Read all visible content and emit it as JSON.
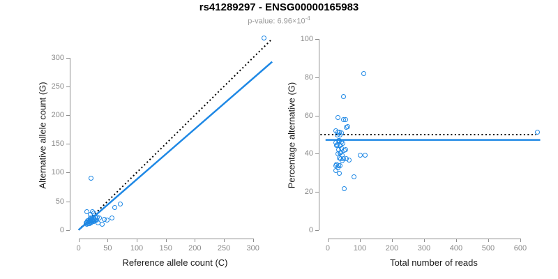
{
  "header": {
    "title": "rs41289297 - ENSG00000165983",
    "pvalue_label": "p-value: 6.96×10",
    "pvalue_exponent": "-4"
  },
  "colors": {
    "point_blue": "#1E88E5",
    "line_blue": "#1E88E5",
    "dotted_black": "#000000",
    "axis_gray": "#8E8E8E",
    "tick_label_gray": "#8A8A8A",
    "subtitle_gray": "#9A9A9A"
  },
  "chart_data": [
    {
      "type": "scatter",
      "panel": "left",
      "xlabel": "Reference allele count (C)",
      "ylabel": "Alternative allele count (G)",
      "xlim": [
        -14,
        346
      ],
      "ylim": [
        -15,
        346
      ],
      "xticks": [
        0,
        50,
        100,
        150,
        200,
        250,
        300
      ],
      "yticks": [
        0,
        50,
        100,
        150,
        200,
        250,
        300
      ],
      "grid": false,
      "legend": "none",
      "point_color": "#1E88E5",
      "points": [
        [
          318,
          335
        ],
        [
          21,
          91
        ],
        [
          14,
          33
        ],
        [
          23,
          32
        ],
        [
          61,
          40
        ],
        [
          71,
          46
        ],
        [
          57,
          22
        ],
        [
          43,
          19
        ],
        [
          48,
          18
        ],
        [
          40,
          11
        ],
        [
          33,
          13
        ],
        [
          31,
          23
        ],
        [
          35,
          21
        ],
        [
          20,
          28
        ],
        [
          26,
          30
        ],
        [
          12,
          13
        ],
        [
          13,
          11
        ],
        [
          14,
          14
        ],
        [
          15,
          12
        ],
        [
          15,
          16
        ],
        [
          16,
          13
        ],
        [
          17,
          15
        ],
        [
          17,
          18
        ],
        [
          18,
          12
        ],
        [
          18,
          16
        ],
        [
          19,
          14
        ],
        [
          19,
          19
        ],
        [
          20,
          16
        ],
        [
          20,
          21
        ],
        [
          21,
          13
        ],
        [
          21,
          17
        ],
        [
          22,
          15
        ],
        [
          22,
          19
        ],
        [
          23,
          16
        ],
        [
          24,
          18
        ],
        [
          25,
          15
        ],
        [
          25,
          21
        ],
        [
          26,
          17
        ],
        [
          27,
          19
        ],
        [
          28,
          16
        ],
        [
          29,
          21
        ],
        [
          30,
          18
        ]
      ],
      "lines": [
        {
          "name": "identity-line",
          "style": "dotted",
          "color": "#000000",
          "width": 2,
          "x1": 0,
          "y1": 0,
          "x2": 333,
          "y2": 333
        },
        {
          "name": "regression-line",
          "style": "solid",
          "color": "#1E88E5",
          "width": 2.5,
          "x1": 0,
          "y1": 0,
          "x2": 333,
          "y2": 293
        }
      ]
    },
    {
      "type": "scatter",
      "panel": "right",
      "xlabel": "Total number of reads",
      "ylabel": "Percentage alternative (G)",
      "xlim": [
        -26,
        687
      ],
      "ylim": [
        -4.4,
        104
      ],
      "xticks": [
        0,
        100,
        200,
        300,
        400,
        500,
        600
      ],
      "yticks": [
        0,
        20,
        40,
        60,
        80,
        100
      ],
      "grid": false,
      "legend": "none",
      "point_color": "#1E88E5",
      "points": [
        [
          653,
          51.5
        ],
        [
          112,
          82
        ],
        [
          47,
          70
        ],
        [
          55,
          58
        ],
        [
          30,
          59
        ],
        [
          62,
          54.5
        ],
        [
          101,
          39.5
        ],
        [
          116,
          39.5
        ],
        [
          80,
          28
        ],
        [
          49,
          22
        ],
        [
          34,
          30
        ],
        [
          26,
          34.5
        ],
        [
          33,
          34
        ],
        [
          23,
          34
        ],
        [
          38,
          34
        ],
        [
          30,
          33
        ],
        [
          25,
          31.5
        ],
        [
          54,
          42.5
        ],
        [
          56,
          37.5
        ],
        [
          65,
          37
        ],
        [
          48,
          58
        ],
        [
          56,
          54
        ],
        [
          25,
          52
        ],
        [
          24,
          46
        ],
        [
          28,
          50
        ],
        [
          27,
          44.5
        ],
        [
          31,
          51.5
        ],
        [
          29,
          45
        ],
        [
          32,
          47
        ],
        [
          35,
          51.5
        ],
        [
          30,
          40
        ],
        [
          34,
          47
        ],
        [
          33,
          42.5
        ],
        [
          38,
          50
        ],
        [
          36,
          44.5
        ],
        [
          41,
          51
        ],
        [
          34,
          38
        ],
        [
          38,
          44.5
        ],
        [
          37,
          40.5
        ],
        [
          41,
          46.5
        ],
        [
          39,
          41
        ],
        [
          42,
          43
        ],
        [
          40,
          37.5
        ],
        [
          46,
          45.5
        ],
        [
          43,
          39.5
        ],
        [
          44,
          36.5
        ],
        [
          50,
          42
        ],
        [
          48,
          37.5
        ]
      ],
      "lines": [
        {
          "name": "expected-50pct-line",
          "style": "dotted",
          "color": "#000000",
          "width": 2,
          "x1": -23,
          "y1": 50,
          "x2": 649,
          "y2": 50
        },
        {
          "name": "mean-percentage-line",
          "style": "solid",
          "color": "#1E88E5",
          "width": 2.5,
          "x1": -7,
          "y1": 47.2,
          "x2": 662,
          "y2": 47.2
        }
      ]
    }
  ]
}
